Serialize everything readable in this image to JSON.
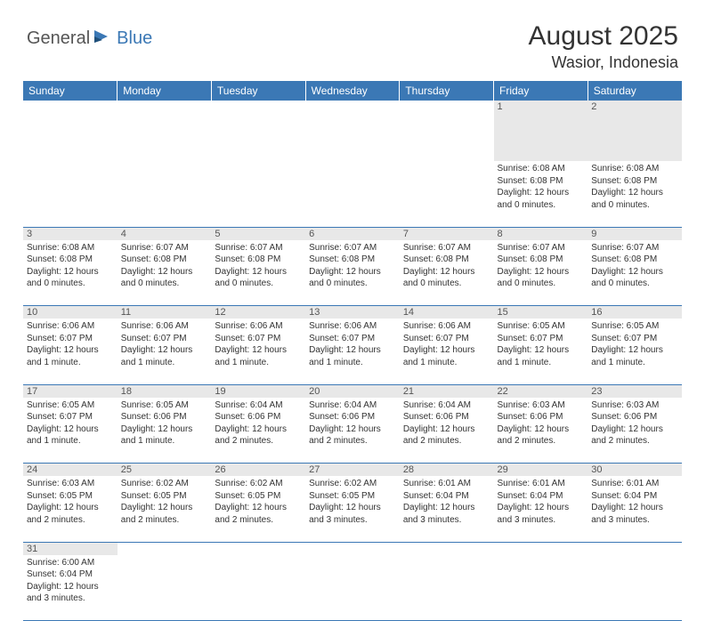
{
  "logo": {
    "part1": "General",
    "part2": "Blue"
  },
  "title": "August 2025",
  "location": "Wasior, Indonesia",
  "styling": {
    "header_bg": "#3b78b5",
    "header_fg": "#ffffff",
    "daynum_bg": "#e8e8e8",
    "row_border": "#3b78b5",
    "page_bg": "#ffffff",
    "body_font_size": 10,
    "title_font_size": 30,
    "location_font_size": 18,
    "dayheader_font_size": 12
  },
  "day_headers": [
    "Sunday",
    "Monday",
    "Tuesday",
    "Wednesday",
    "Thursday",
    "Friday",
    "Saturday"
  ],
  "weeks": [
    [
      null,
      null,
      null,
      null,
      null,
      {
        "n": "1",
        "sr": "6:08 AM",
        "ss": "6:08 PM",
        "dl": "12 hours and 0 minutes."
      },
      {
        "n": "2",
        "sr": "6:08 AM",
        "ss": "6:08 PM",
        "dl": "12 hours and 0 minutes."
      }
    ],
    [
      {
        "n": "3",
        "sr": "6:08 AM",
        "ss": "6:08 PM",
        "dl": "12 hours and 0 minutes."
      },
      {
        "n": "4",
        "sr": "6:07 AM",
        "ss": "6:08 PM",
        "dl": "12 hours and 0 minutes."
      },
      {
        "n": "5",
        "sr": "6:07 AM",
        "ss": "6:08 PM",
        "dl": "12 hours and 0 minutes."
      },
      {
        "n": "6",
        "sr": "6:07 AM",
        "ss": "6:08 PM",
        "dl": "12 hours and 0 minutes."
      },
      {
        "n": "7",
        "sr": "6:07 AM",
        "ss": "6:08 PM",
        "dl": "12 hours and 0 minutes."
      },
      {
        "n": "8",
        "sr": "6:07 AM",
        "ss": "6:08 PM",
        "dl": "12 hours and 0 minutes."
      },
      {
        "n": "9",
        "sr": "6:07 AM",
        "ss": "6:08 PM",
        "dl": "12 hours and 0 minutes."
      }
    ],
    [
      {
        "n": "10",
        "sr": "6:06 AM",
        "ss": "6:07 PM",
        "dl": "12 hours and 1 minute."
      },
      {
        "n": "11",
        "sr": "6:06 AM",
        "ss": "6:07 PM",
        "dl": "12 hours and 1 minute."
      },
      {
        "n": "12",
        "sr": "6:06 AM",
        "ss": "6:07 PM",
        "dl": "12 hours and 1 minute."
      },
      {
        "n": "13",
        "sr": "6:06 AM",
        "ss": "6:07 PM",
        "dl": "12 hours and 1 minute."
      },
      {
        "n": "14",
        "sr": "6:06 AM",
        "ss": "6:07 PM",
        "dl": "12 hours and 1 minute."
      },
      {
        "n": "15",
        "sr": "6:05 AM",
        "ss": "6:07 PM",
        "dl": "12 hours and 1 minute."
      },
      {
        "n": "16",
        "sr": "6:05 AM",
        "ss": "6:07 PM",
        "dl": "12 hours and 1 minute."
      }
    ],
    [
      {
        "n": "17",
        "sr": "6:05 AM",
        "ss": "6:07 PM",
        "dl": "12 hours and 1 minute."
      },
      {
        "n": "18",
        "sr": "6:05 AM",
        "ss": "6:06 PM",
        "dl": "12 hours and 1 minute."
      },
      {
        "n": "19",
        "sr": "6:04 AM",
        "ss": "6:06 PM",
        "dl": "12 hours and 2 minutes."
      },
      {
        "n": "20",
        "sr": "6:04 AM",
        "ss": "6:06 PM",
        "dl": "12 hours and 2 minutes."
      },
      {
        "n": "21",
        "sr": "6:04 AM",
        "ss": "6:06 PM",
        "dl": "12 hours and 2 minutes."
      },
      {
        "n": "22",
        "sr": "6:03 AM",
        "ss": "6:06 PM",
        "dl": "12 hours and 2 minutes."
      },
      {
        "n": "23",
        "sr": "6:03 AM",
        "ss": "6:06 PM",
        "dl": "12 hours and 2 minutes."
      }
    ],
    [
      {
        "n": "24",
        "sr": "6:03 AM",
        "ss": "6:05 PM",
        "dl": "12 hours and 2 minutes."
      },
      {
        "n": "25",
        "sr": "6:02 AM",
        "ss": "6:05 PM",
        "dl": "12 hours and 2 minutes."
      },
      {
        "n": "26",
        "sr": "6:02 AM",
        "ss": "6:05 PM",
        "dl": "12 hours and 2 minutes."
      },
      {
        "n": "27",
        "sr": "6:02 AM",
        "ss": "6:05 PM",
        "dl": "12 hours and 3 minutes."
      },
      {
        "n": "28",
        "sr": "6:01 AM",
        "ss": "6:04 PM",
        "dl": "12 hours and 3 minutes."
      },
      {
        "n": "29",
        "sr": "6:01 AM",
        "ss": "6:04 PM",
        "dl": "12 hours and 3 minutes."
      },
      {
        "n": "30",
        "sr": "6:01 AM",
        "ss": "6:04 PM",
        "dl": "12 hours and 3 minutes."
      }
    ],
    [
      {
        "n": "31",
        "sr": "6:00 AM",
        "ss": "6:04 PM",
        "dl": "12 hours and 3 minutes."
      },
      null,
      null,
      null,
      null,
      null,
      null
    ]
  ],
  "labels": {
    "sunrise": "Sunrise: ",
    "sunset": "Sunset: ",
    "daylight": "Daylight: "
  }
}
